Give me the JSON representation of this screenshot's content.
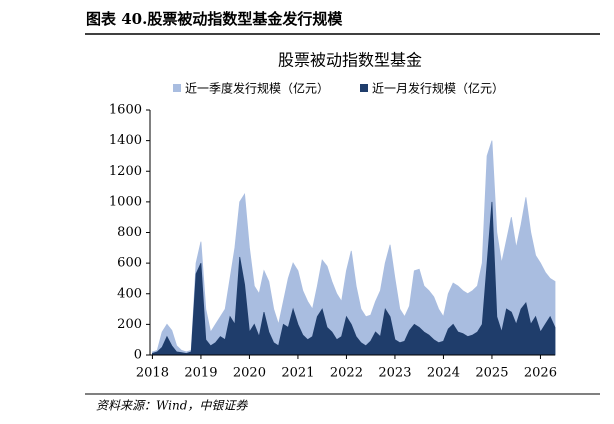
{
  "chart_data": {
    "type": "area",
    "figure_label": "图表 40.股票被动指数型基金发行规模",
    "title": "股票被动指数型基金",
    "source": "资料来源：Wind，中银证券",
    "x": [
      2018.0,
      2018.1,
      2018.2,
      2018.3,
      2018.4,
      2018.5,
      2018.6,
      2018.7,
      2018.8,
      2018.9,
      2019.0,
      2019.1,
      2019.2,
      2019.3,
      2019.4,
      2019.5,
      2019.6,
      2019.7,
      2019.8,
      2019.9,
      2020.0,
      2020.1,
      2020.2,
      2020.3,
      2020.4,
      2020.5,
      2020.6,
      2020.7,
      2020.8,
      2020.9,
      2021.0,
      2021.1,
      2021.2,
      2021.3,
      2021.4,
      2021.5,
      2021.6,
      2021.7,
      2021.8,
      2021.9,
      2022.0,
      2022.1,
      2022.2,
      2022.3,
      2022.4,
      2022.5,
      2022.6,
      2022.7,
      2022.8,
      2022.9,
      2023.0,
      2023.1,
      2023.2,
      2023.3,
      2023.4,
      2023.5,
      2023.6,
      2023.7,
      2023.8,
      2023.9,
      2024.0,
      2024.1,
      2024.2,
      2024.3,
      2024.4,
      2024.5,
      2024.6,
      2024.7,
      2024.8,
      2024.9,
      2025.0,
      2025.1,
      2025.2,
      2025.3,
      2025.4,
      2025.5,
      2025.6,
      2025.7,
      2025.8,
      2025.9,
      2026.0,
      2026.1,
      2026.2,
      2026.3
    ],
    "series": [
      {
        "name": "近一季度发行规模（亿元）",
        "color": "#a9bde0",
        "values": [
          20,
          30,
          150,
          200,
          160,
          60,
          30,
          20,
          30,
          600,
          740,
          300,
          150,
          200,
          250,
          300,
          500,
          700,
          1000,
          1050,
          700,
          450,
          400,
          550,
          480,
          300,
          200,
          350,
          500,
          600,
          550,
          420,
          350,
          300,
          450,
          620,
          580,
          480,
          400,
          350,
          550,
          680,
          450,
          300,
          250,
          260,
          350,
          420,
          600,
          720,
          500,
          300,
          250,
          320,
          550,
          560,
          450,
          420,
          380,
          300,
          250,
          400,
          470,
          450,
          420,
          400,
          420,
          450,
          600,
          1300,
          1400,
          800,
          600,
          750,
          900,
          700,
          850,
          1030,
          800,
          650,
          600,
          540,
          500,
          480
        ]
      },
      {
        "name": "近一月发行规模（亿元）",
        "color": "#1f3d6b",
        "values": [
          10,
          20,
          50,
          120,
          60,
          20,
          15,
          10,
          20,
          530,
          600,
          100,
          60,
          80,
          120,
          100,
          250,
          200,
          640,
          460,
          150,
          200,
          120,
          280,
          150,
          80,
          60,
          200,
          180,
          300,
          200,
          130,
          100,
          120,
          250,
          300,
          180,
          150,
          100,
          120,
          250,
          200,
          120,
          80,
          60,
          90,
          150,
          120,
          300,
          250,
          100,
          80,
          90,
          160,
          200,
          180,
          150,
          130,
          100,
          80,
          90,
          170,
          200,
          150,
          140,
          120,
          130,
          150,
          200,
          600,
          1000,
          250,
          150,
          300,
          280,
          200,
          300,
          340,
          200,
          250,
          150,
          200,
          250,
          180
        ]
      }
    ],
    "xlim": [
      2017.95,
      2026.3
    ],
    "xticks": [
      2018,
      2019,
      2020,
      2021,
      2022,
      2023,
      2024,
      2025,
      2026
    ],
    "ylim": [
      0,
      1600
    ],
    "yticks": [
      0,
      200,
      400,
      600,
      800,
      1000,
      1200,
      1400,
      1600
    ],
    "legend": "top"
  }
}
